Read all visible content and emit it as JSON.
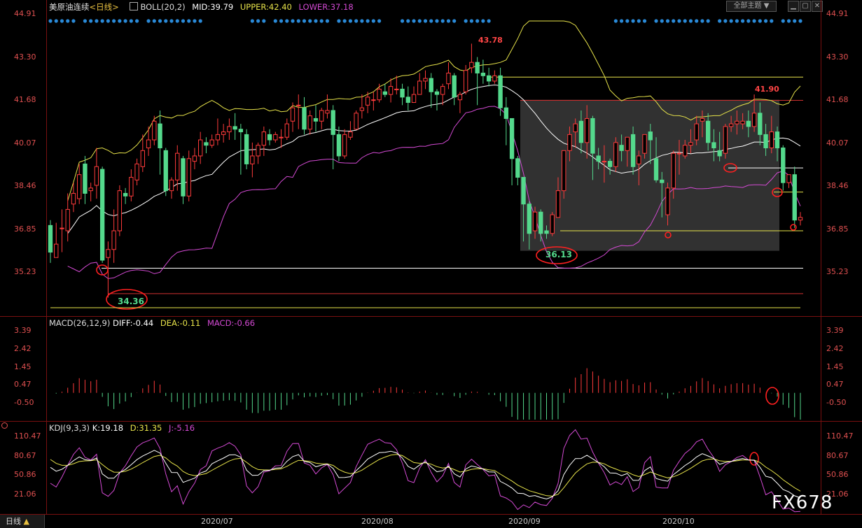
{
  "title": "美原油连续",
  "period_label": "<日线>",
  "theme_button": "全部主题",
  "watermark": "FX678",
  "bottom_tab": "日线",
  "colors": {
    "up": "#ff3b3b",
    "down": "#54d98c",
    "mid": "#ffffff",
    "upper": "#e7e34a",
    "lower": "#d44ad4",
    "axis": "#e05050",
    "frame": "#7a1010"
  },
  "boll": {
    "name": "BOLL(20,2)",
    "mid": "MID:39.79",
    "upper": "UPPER:42.40",
    "lower": "LOWER:37.18"
  },
  "macd": {
    "name": "MACD(26,12,9)",
    "diff": "DIFF:-0.44",
    "dea": "DEA:-0.11",
    "macd": "MACD:-0.66"
  },
  "kdj": {
    "name": "KDJ(9,3,3)",
    "k": "K:19.18",
    "d": "D:31.35",
    "j": "J:-5.16"
  },
  "x_labels": [
    "2020/07",
    "2020/08",
    "2020/09",
    "2020/10"
  ],
  "main_ticks": [
    "44.91",
    "43.30",
    "41.68",
    "40.07",
    "38.46",
    "36.85",
    "35.23"
  ],
  "macd_ticks": [
    "3.39",
    "2.42",
    "1.45",
    "0.47",
    "-0.50"
  ],
  "kdj_ticks": [
    "110.47",
    "80.67",
    "50.86",
    "21.06"
  ],
  "annotations": {
    "high": "43.78",
    "low1": "34.36",
    "low2": "36.13",
    "high2": "41.90"
  },
  "chart_data": {
    "type": "candlestick",
    "ylim": [
      34.0,
      45.0
    ],
    "candles": [
      [
        37.0,
        37.2,
        36.0,
        35.6
      ],
      [
        35.8,
        37.1,
        36.3,
        35.9
      ],
      [
        36.9,
        37.6,
        36.9,
        36.0
      ],
      [
        36.8,
        38.2,
        37.6,
        36.4
      ],
      [
        37.8,
        38.6,
        38.2,
        37.5
      ],
      [
        38.0,
        39.3,
        38.9,
        37.8
      ],
      [
        39.3,
        39.6,
        38.2,
        37.8
      ],
      [
        38.3,
        38.6,
        38.4,
        37.9
      ],
      [
        38.5,
        39.9,
        39.2,
        38.0
      ],
      [
        39.1,
        39.2,
        35.7,
        35.6
      ],
      [
        35.8,
        36.4,
        36.1,
        34.3
      ],
      [
        36.1,
        37.6,
        36.8,
        35.6
      ],
      [
        36.8,
        38.5,
        38.3,
        36.6
      ],
      [
        38.2,
        38.4,
        38.1,
        37.8
      ],
      [
        38.1,
        39.1,
        38.8,
        37.9
      ],
      [
        38.7,
        39.5,
        39.3,
        38.5
      ],
      [
        39.2,
        40.4,
        39.8,
        39.0
      ],
      [
        39.9,
        40.7,
        40.2,
        39.6
      ],
      [
        40.2,
        41.1,
        40.9,
        40.0
      ],
      [
        40.8,
        41.3,
        39.9,
        38.9
      ],
      [
        39.8,
        39.9,
        38.3,
        38.1
      ],
      [
        38.3,
        38.8,
        38.7,
        38.0
      ],
      [
        38.7,
        40.0,
        39.7,
        38.3
      ],
      [
        39.5,
        39.6,
        38.1,
        37.8
      ],
      [
        38.1,
        39.8,
        39.5,
        37.9
      ],
      [
        39.4,
        39.9,
        39.6,
        39.1
      ],
      [
        39.6,
        40.5,
        40.2,
        39.3
      ],
      [
        40.1,
        40.3,
        40.0,
        39.7
      ],
      [
        40.0,
        40.4,
        40.2,
        39.9
      ],
      [
        40.2,
        41.0,
        40.4,
        40.0
      ],
      [
        40.4,
        40.8,
        40.5,
        40.1
      ],
      [
        40.5,
        41.0,
        40.7,
        40.2
      ],
      [
        40.7,
        41.2,
        40.6,
        40.2
      ],
      [
        40.6,
        40.8,
        40.5,
        38.9
      ],
      [
        40.4,
        40.6,
        39.3,
        39.1
      ],
      [
        39.3,
        40.1,
        39.6,
        38.8
      ],
      [
        39.6,
        40.1,
        40.0,
        39.3
      ],
      [
        40.0,
        40.7,
        40.5,
        39.6
      ],
      [
        40.4,
        40.6,
        40.2,
        40.0
      ],
      [
        40.2,
        40.5,
        40.4,
        40.1
      ],
      [
        40.3,
        40.6,
        40.3,
        39.9
      ],
      [
        40.3,
        41.0,
        40.8,
        40.2
      ],
      [
        40.9,
        41.6,
        41.4,
        40.5
      ],
      [
        41.5,
        41.9,
        41.5,
        40.6
      ],
      [
        41.4,
        41.8,
        40.6,
        40.4
      ],
      [
        40.6,
        41.3,
        41.1,
        40.4
      ],
      [
        41.0,
        41.5,
        40.9,
        40.5
      ],
      [
        40.9,
        41.4,
        41.3,
        40.6
      ],
      [
        41.2,
        41.9,
        41.3,
        41.0
      ],
      [
        41.3,
        41.5,
        40.4,
        39.1
      ],
      [
        40.4,
        40.7,
        39.6,
        39.4
      ],
      [
        39.6,
        40.6,
        40.4,
        39.5
      ],
      [
        40.3,
        40.9,
        40.5,
        40.2
      ],
      [
        40.6,
        41.3,
        41.2,
        40.6
      ],
      [
        41.3,
        41.9,
        41.4,
        41.0
      ],
      [
        41.5,
        42.0,
        41.8,
        41.2
      ],
      [
        41.7,
        42.0,
        41.7,
        41.3
      ],
      [
        41.7,
        42.3,
        42.1,
        41.6
      ],
      [
        42.0,
        42.3,
        41.9,
        41.8
      ],
      [
        41.9,
        42.5,
        42.2,
        41.6
      ],
      [
        42.1,
        42.6,
        42.1,
        41.9
      ],
      [
        42.1,
        42.3,
        41.8,
        41.5
      ],
      [
        41.8,
        42.2,
        41.6,
        41.3
      ],
      [
        41.6,
        42.2,
        41.9,
        41.6
      ],
      [
        41.9,
        42.7,
        42.4,
        41.9
      ],
      [
        42.4,
        42.8,
        42.5,
        42.1
      ],
      [
        42.5,
        42.7,
        42.0,
        41.4
      ],
      [
        42.0,
        42.1,
        41.9,
        41.3
      ],
      [
        41.9,
        42.3,
        42.2,
        41.5
      ],
      [
        42.3,
        43.1,
        42.7,
        42.1
      ],
      [
        42.6,
        42.7,
        41.8,
        41.5
      ],
      [
        41.7,
        42.0,
        41.9,
        41.2
      ],
      [
        42.0,
        43.0,
        42.8,
        41.9
      ],
      [
        42.9,
        43.8,
        43.1,
        42.7
      ],
      [
        43.1,
        43.3,
        42.7,
        41.5
      ],
      [
        42.7,
        43.2,
        42.6,
        42.3
      ],
      [
        42.6,
        42.9,
        42.4,
        42.2
      ],
      [
        42.4,
        42.8,
        42.6,
        42.3
      ],
      [
        42.6,
        42.9,
        41.4,
        41.1
      ],
      [
        41.4,
        41.8,
        41.0,
        40.0
      ],
      [
        41.0,
        41.0,
        39.5,
        38.5
      ],
      [
        39.5,
        39.6,
        38.8,
        38.5
      ],
      [
        38.8,
        38.8,
        37.8,
        36.4
      ],
      [
        37.8,
        37.9,
        36.7,
        36.1
      ],
      [
        36.8,
        37.7,
        37.5,
        36.5
      ],
      [
        37.5,
        37.6,
        36.7,
        36.4
      ],
      [
        36.8,
        37.0,
        36.7,
        36.5
      ],
      [
        36.7,
        37.5,
        37.4,
        36.6
      ],
      [
        37.3,
        38.8,
        38.3,
        37.3
      ],
      [
        38.3,
        39.8,
        39.8,
        38.0
      ],
      [
        39.8,
        40.7,
        40.4,
        39.4
      ],
      [
        40.5,
        41.0,
        40.8,
        39.9
      ],
      [
        40.9,
        41.3,
        40.1,
        39.7
      ],
      [
        40.1,
        41.5,
        41.0,
        39.5
      ],
      [
        41.0,
        41.1,
        39.7,
        38.7
      ],
      [
        39.6,
        39.9,
        39.4,
        39.1
      ],
      [
        39.4,
        40.0,
        39.4,
        38.6
      ],
      [
        39.4,
        39.5,
        39.2,
        38.9
      ],
      [
        39.2,
        40.3,
        40.1,
        39.0
      ],
      [
        40.0,
        40.4,
        39.8,
        39.4
      ],
      [
        39.8,
        40.3,
        40.3,
        39.2
      ],
      [
        40.4,
        40.7,
        39.2,
        38.9
      ],
      [
        39.3,
        39.8,
        39.6,
        38.5
      ],
      [
        39.7,
        40.4,
        40.4,
        39.5
      ],
      [
        40.5,
        40.8,
        40.2,
        39.3
      ],
      [
        39.5,
        40.3,
        38.7,
        38.6
      ],
      [
        38.7,
        39.0,
        38.6,
        37.3
      ],
      [
        37.4,
        38.6,
        38.4,
        37.0
      ],
      [
        38.4,
        39.8,
        39.7,
        38.0
      ],
      [
        39.7,
        40.2,
        39.7,
        38.9
      ],
      [
        39.6,
        40.2,
        40.0,
        39.5
      ],
      [
        40.0,
        40.6,
        40.1,
        39.7
      ],
      [
        40.2,
        41.1,
        40.8,
        40.0
      ],
      [
        40.9,
        41.3,
        41.0,
        40.3
      ],
      [
        40.9,
        41.2,
        40.1,
        39.8
      ],
      [
        40.1,
        40.6,
        39.9,
        39.4
      ],
      [
        39.8,
        40.5,
        39.6,
        39.4
      ],
      [
        39.7,
        40.8,
        40.7,
        39.5
      ],
      [
        40.7,
        41.1,
        40.8,
        40.5
      ],
      [
        40.8,
        41.3,
        40.9,
        40.4
      ],
      [
        40.8,
        41.2,
        40.9,
        40.6
      ],
      [
        40.9,
        41.3,
        40.7,
        40.3
      ],
      [
        40.7,
        41.9,
        41.2,
        40.5
      ],
      [
        41.2,
        41.6,
        40.4,
        40.0
      ],
      [
        40.4,
        40.8,
        39.9,
        39.6
      ],
      [
        39.9,
        41.1,
        40.5,
        39.7
      ],
      [
        40.5,
        40.7,
        39.9,
        39.4
      ],
      [
        39.9,
        40.0,
        38.6,
        38.3
      ],
      [
        38.6,
        38.8,
        38.9,
        38.4
      ],
      [
        38.9,
        39.2,
        37.2,
        36.9
      ],
      [
        37.2,
        37.5,
        37.3,
        37.0
      ]
    ]
  }
}
